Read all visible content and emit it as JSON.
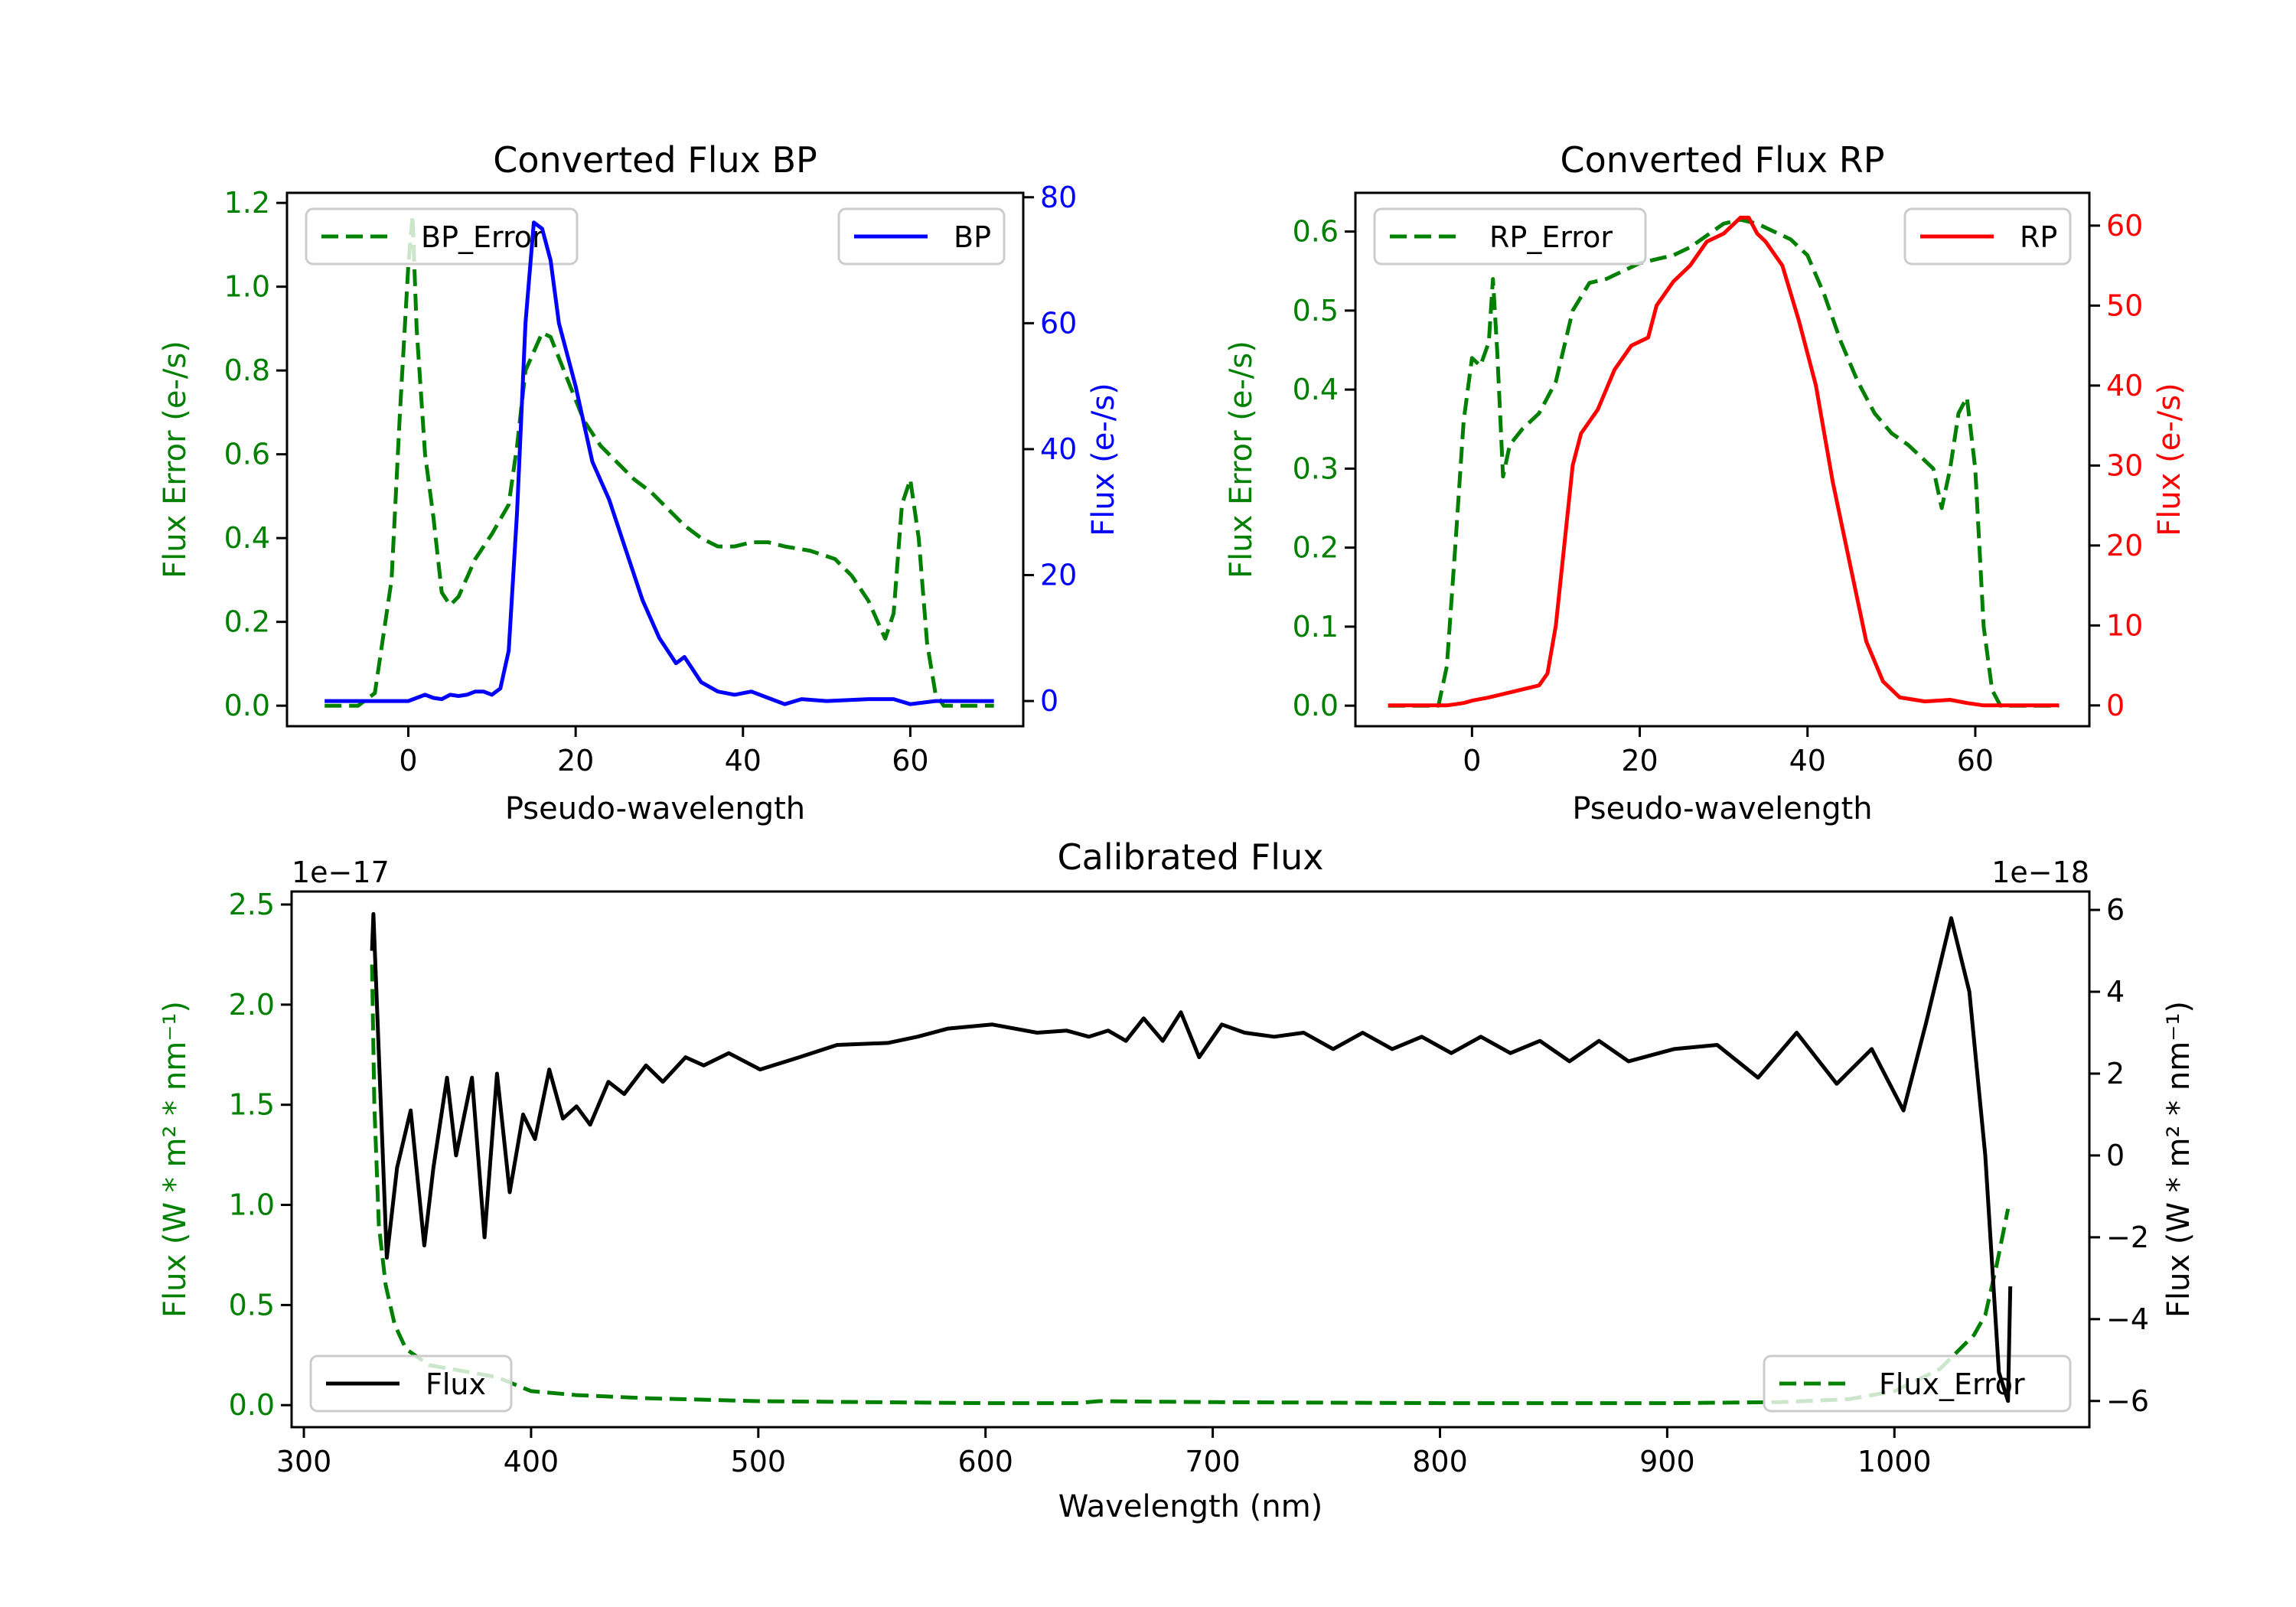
{
  "chart_data": [
    {
      "type": "line",
      "title": "Converted Flux BP",
      "xlabel": "Pseudo-wavelength",
      "xlim": [
        -14.5,
        73.5
      ],
      "xticks": [
        0,
        20,
        40,
        60
      ],
      "xtick_labels": [
        "0",
        "20",
        "40",
        "60"
      ],
      "left_axis": {
        "label": "Flux Error (e-/s)",
        "color": "#008000",
        "lim": [
          -0.049,
          1.224
        ],
        "ticks": [
          0.0,
          0.2,
          0.4,
          0.6,
          0.8,
          1.0,
          1.2
        ],
        "tick_labels": [
          "0.0",
          "0.2",
          "0.4",
          "0.6",
          "0.8",
          "1.0",
          "1.2"
        ]
      },
      "right_axis": {
        "label": "Flux (e-/s)",
        "color": "#0000ff",
        "lim": [
          -4.0,
          80.7
        ],
        "ticks": [
          0,
          20,
          40,
          60,
          80
        ],
        "tick_labels": [
          "0",
          "20",
          "40",
          "60",
          "80"
        ]
      },
      "series": [
        {
          "name": "BP_Error",
          "axis": "left",
          "color": "#008000",
          "style": "dashed",
          "x": [
            -10,
            -6,
            -4,
            -2,
            -1,
            0,
            0.5,
            1,
            2,
            3,
            4,
            5,
            6,
            8,
            10,
            12,
            13,
            14,
            16,
            17,
            19,
            21,
            23,
            25,
            27,
            29,
            31,
            33,
            35,
            37,
            39,
            41,
            43,
            45,
            48,
            51,
            53,
            55,
            57,
            58,
            59,
            60,
            61,
            62,
            63,
            64,
            70
          ],
          "y": [
            0,
            0,
            0.03,
            0.3,
            0.7,
            1.05,
            1.17,
            0.9,
            0.6,
            0.45,
            0.27,
            0.24,
            0.26,
            0.35,
            0.41,
            0.48,
            0.62,
            0.8,
            0.89,
            0.88,
            0.78,
            0.68,
            0.62,
            0.58,
            0.54,
            0.51,
            0.47,
            0.43,
            0.4,
            0.38,
            0.38,
            0.39,
            0.39,
            0.38,
            0.37,
            0.35,
            0.31,
            0.25,
            0.16,
            0.22,
            0.48,
            0.54,
            0.4,
            0.15,
            0.03,
            0,
            0
          ]
        },
        {
          "name": "BP",
          "axis": "right",
          "color": "#0000ff",
          "style": "solid",
          "x": [
            -10,
            -5,
            0,
            1,
            2,
            3,
            4,
            5,
            6,
            7,
            8,
            9,
            10,
            11,
            12,
            13,
            14,
            15,
            16,
            17,
            18,
            20,
            22,
            24,
            26,
            28,
            30,
            32,
            33,
            34,
            35,
            37,
            39,
            41,
            43,
            45,
            47,
            50,
            55,
            58,
            60,
            63,
            70
          ],
          "y": [
            0,
            0,
            0,
            0.5,
            1,
            0.5,
            0.3,
            1,
            0.8,
            1,
            1.5,
            1.5,
            1,
            2,
            8,
            30,
            60,
            76,
            75,
            70,
            60,
            50,
            38,
            32,
            24,
            16,
            10,
            6,
            7,
            5,
            3,
            1.5,
            1,
            1.5,
            0.5,
            -0.5,
            0.3,
            0,
            0.3,
            0.3,
            -0.5,
            0,
            0
          ]
        }
      ],
      "legends": [
        {
          "label": "BP_Error",
          "series": "BP_Error",
          "position": "upper left"
        },
        {
          "label": "BP",
          "series": "BP",
          "position": "upper right"
        }
      ]
    },
    {
      "type": "line",
      "title": "Converted Flux RP",
      "xlabel": "Pseudo-wavelength",
      "xlim": [
        -13.9,
        73.6
      ],
      "xticks": [
        0,
        20,
        40,
        60
      ],
      "xtick_labels": [
        "0",
        "20",
        "40",
        "60"
      ],
      "left_axis": {
        "label": "Flux Error (e-/s)",
        "color": "#008000",
        "lim": [
          -0.026,
          0.649
        ],
        "ticks": [
          0.0,
          0.1,
          0.2,
          0.3,
          0.4,
          0.5,
          0.6
        ],
        "tick_labels": [
          "0.0",
          "0.1",
          "0.2",
          "0.3",
          "0.4",
          "0.5",
          "0.6"
        ]
      },
      "right_axis": {
        "label": "Flux (e-/s)",
        "color": "#ff0000",
        "lim": [
          -2.6,
          64.1
        ],
        "ticks": [
          0,
          10,
          20,
          30,
          40,
          50,
          60
        ],
        "tick_labels": [
          "0",
          "10",
          "20",
          "30",
          "40",
          "50",
          "60"
        ]
      },
      "series": [
        {
          "name": "RP_Error",
          "axis": "left",
          "color": "#008000",
          "style": "dashed",
          "x": [
            -10,
            -4,
            -3,
            -2,
            -1,
            0,
            1,
            2,
            2.5,
            3,
            3.7,
            4.5,
            6,
            8,
            10,
            12,
            14,
            16,
            18,
            20,
            22,
            24,
            26,
            28,
            30,
            32,
            34,
            36,
            38,
            40,
            42,
            44,
            46,
            48,
            50,
            52,
            54,
            55,
            56,
            57,
            58,
            59,
            60,
            61,
            62,
            63,
            70
          ],
          "y": [
            0,
            0,
            0.05,
            0.2,
            0.36,
            0.44,
            0.43,
            0.46,
            0.54,
            0.45,
            0.29,
            0.33,
            0.35,
            0.37,
            0.41,
            0.5,
            0.535,
            0.54,
            0.55,
            0.56,
            0.565,
            0.57,
            0.58,
            0.595,
            0.61,
            0.615,
            0.61,
            0.6,
            0.59,
            0.57,
            0.52,
            0.46,
            0.41,
            0.37,
            0.345,
            0.33,
            0.31,
            0.3,
            0.25,
            0.3,
            0.37,
            0.39,
            0.3,
            0.1,
            0.02,
            0,
            0
          ]
        },
        {
          "name": "RP",
          "axis": "right",
          "color": "#ff0000",
          "style": "solid",
          "x": [
            -10,
            -3,
            -1,
            0,
            2,
            4,
            6,
            8,
            9,
            10,
            11,
            12,
            13,
            15,
            17,
            19,
            21,
            22,
            24,
            26,
            28,
            30,
            32,
            33,
            34,
            35,
            37,
            39,
            41,
            43,
            45,
            47,
            49,
            51,
            54,
            57,
            59,
            61,
            70
          ],
          "y": [
            0,
            0,
            0.3,
            0.6,
            1,
            1.5,
            2,
            2.5,
            4,
            10,
            20,
            30,
            34,
            37,
            42,
            45,
            46,
            50,
            53,
            55,
            58,
            59,
            61,
            61,
            59,
            58,
            55,
            48,
            40,
            28,
            18,
            8,
            3,
            1,
            0.5,
            0.7,
            0.3,
            0,
            0
          ]
        }
      ],
      "legends": [
        {
          "label": "RP_Error",
          "series": "RP_Error",
          "position": "upper left"
        },
        {
          "label": "RP",
          "series": "RP",
          "position": "upper right"
        }
      ]
    },
    {
      "type": "line",
      "title": "Calibrated Flux",
      "xlabel": "Wavelength (nm)",
      "xlim": [
        294.6,
        1085.8
      ],
      "xticks": [
        300,
        400,
        500,
        600,
        700,
        800,
        900,
        1000
      ],
      "xtick_labels": [
        "300",
        "400",
        "500",
        "600",
        "700",
        "800",
        "900",
        "1000"
      ],
      "left_axis": {
        "label": "Flux (W * m² * nm⁻¹)",
        "color": "#008000",
        "lim": [
          -0.11,
          2.565
        ],
        "ticks": [
          0.0,
          0.5,
          1.0,
          1.5,
          2.0,
          2.5
        ],
        "tick_labels": [
          "0.0",
          "0.5",
          "1.0",
          "1.5",
          "2.0",
          "2.5"
        ],
        "offset_text": "1e−17"
      },
      "right_axis": {
        "label": "Flux (W * m² * nm⁻¹)",
        "color": "#000000",
        "lim": [
          -6.64,
          6.45
        ],
        "ticks": [
          -6,
          -4,
          -2,
          0,
          2,
          4,
          6
        ],
        "tick_labels": [
          "−6",
          "−4",
          "−2",
          "0",
          "2",
          "4",
          "6"
        ],
        "offset_text": "1e−18"
      },
      "series": [
        {
          "name": "Flux_Error",
          "axis": "left",
          "color": "#008000",
          "style": "dashed",
          "x": [
            330,
            331,
            333,
            336,
            340,
            345,
            355,
            370,
            385,
            400,
            420,
            450,
            500,
            600,
            640,
            650,
            700,
            800,
            900,
            950,
            980,
            1000,
            1020,
            1035,
            1040,
            1045,
            1050
          ],
          "y": [
            2.2,
            1.5,
            0.9,
            0.6,
            0.4,
            0.28,
            0.2,
            0.17,
            0.14,
            0.07,
            0.05,
            0.035,
            0.02,
            0.01,
            0.01,
            0.02,
            0.015,
            0.01,
            0.01,
            0.015,
            0.03,
            0.07,
            0.18,
            0.35,
            0.45,
            0.7,
            0.98
          ]
        },
        {
          "name": "Flux",
          "axis": "right",
          "color": "#000000",
          "style": "solid",
          "x": [
            330,
            330.6,
            336.5,
            341,
            347,
            353,
            357,
            363,
            367,
            374,
            379.5,
            385,
            390.6,
            396.5,
            401.7,
            408,
            414,
            420,
            426,
            434,
            441,
            450.6,
            458,
            468,
            476,
            487,
            500.8,
            518,
            534.7,
            557,
            570,
            583.6,
            603,
            622.7,
            635.7,
            645.5,
            654,
            661.8,
            669.6,
            678,
            686,
            694,
            704,
            714,
            727,
            740,
            753,
            766,
            779,
            792,
            805,
            818,
            831,
            844,
            857,
            870,
            883,
            903,
            922,
            940,
            957,
            974.6,
            990,
            1004,
            1014,
            1025,
            1033,
            1040,
            1046,
            1050,
            1051
          ],
          "y": [
            5.0,
            5.9,
            -2.5,
            -0.3,
            1.1,
            -2.2,
            -0.3,
            1.9,
            0.0,
            1.9,
            -2.0,
            2.0,
            -0.9,
            1.0,
            0.4,
            2.1,
            0.9,
            1.2,
            0.75,
            1.8,
            1.5,
            2.2,
            1.8,
            2.4,
            2.2,
            2.5,
            2.1,
            2.4,
            2.7,
            2.75,
            2.9,
            3.1,
            3.2,
            3.0,
            3.05,
            2.9,
            3.05,
            2.8,
            3.35,
            2.8,
            3.5,
            2.4,
            3.2,
            3.0,
            2.9,
            3.0,
            2.6,
            3.0,
            2.6,
            2.9,
            2.5,
            2.9,
            2.5,
            2.8,
            2.3,
            2.8,
            2.3,
            2.6,
            2.7,
            1.9,
            3.0,
            1.75,
            2.6,
            1.1,
            3.25,
            5.8,
            4.0,
            0.0,
            -5.3,
            -6.0,
            -3.2
          ]
        }
      ],
      "legends": [
        {
          "label": "Flux",
          "series": "Flux",
          "position": "lower left"
        },
        {
          "label": "Flux_Error",
          "series": "Flux_Error",
          "position": "lower right"
        }
      ]
    }
  ]
}
